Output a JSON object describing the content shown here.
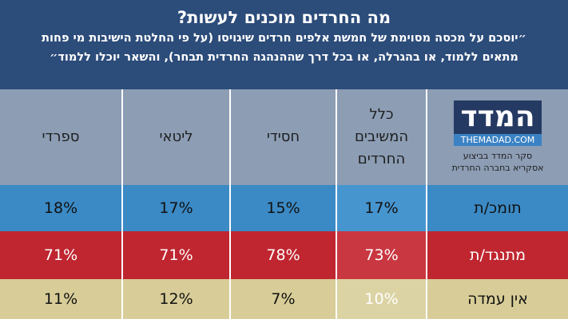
{
  "header": {
    "title": "מה החרדים מוכנים לעשות?",
    "subtitle_lines": [
      "״יוסכם על מכסה מסוימת של חמשת אלפים חרדים שיגויסו (על פי החלטת הישיבות מי פחות",
      "מתאים ללמוד, או בהגרלה, או בכל דרך שההנהגה החרדית תבחר), והשאר יוכלו ללמוד״"
    ]
  },
  "logo": {
    "name": "המדד",
    "url": "THEMADAD.COM",
    "caption_lines": [
      "סקר המדד בביצוע",
      "אסקריא בחברה החרדית"
    ]
  },
  "table": {
    "columns": [
      [
        "כלל",
        "המשיבים",
        "החרדים"
      ],
      [
        "חסידי"
      ],
      [
        "ליטאי"
      ],
      [
        "ספרדי"
      ]
    ],
    "rows": [
      {
        "label": "תומכ/ת",
        "cells": [
          "17%",
          "15%",
          "17%",
          "18%"
        ]
      },
      {
        "label": "מתנגד/ת",
        "cells": [
          "73%",
          "78%",
          "71%",
          "71%"
        ]
      },
      {
        "label": "אין עמדה",
        "cells": [
          "10%",
          "7%",
          "12%",
          "11%"
        ]
      }
    ]
  }
}
